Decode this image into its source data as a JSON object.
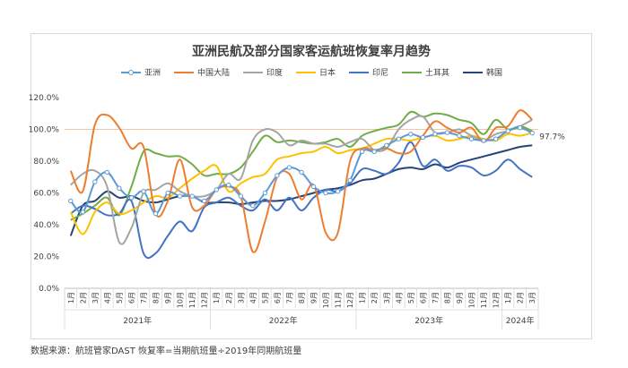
{
  "chart_data": {
    "type": "line",
    "title": "亚洲民航及部分国家客运航班恢复率月趋势",
    "ylim": [
      0,
      120
    ],
    "yticks": [
      "0.0%",
      "20.0%",
      "40.0%",
      "60.0%",
      "80.0%",
      "100.0%",
      "120.0%"
    ],
    "reference_line": 100,
    "annotation": "97.7%",
    "months": [
      "1月",
      "2月",
      "3月",
      "4月",
      "5月",
      "6月",
      "7月",
      "8月",
      "9月",
      "10月",
      "11月",
      "12月",
      "1月",
      "2月",
      "3月",
      "4月",
      "5月",
      "6月",
      "7月",
      "8月",
      "9月",
      "10月",
      "11月",
      "12月",
      "1月",
      "2月",
      "3月",
      "4月",
      "5月",
      "6月",
      "7月",
      "8月",
      "9月",
      "10月",
      "11月",
      "12月",
      "1月",
      "2月",
      "3月"
    ],
    "years": [
      {
        "label": "2021年",
        "start": 0,
        "end": 11
      },
      {
        "label": "2022年",
        "start": 12,
        "end": 23
      },
      {
        "label": "2023年",
        "start": 24,
        "end": 35
      },
      {
        "label": "2024年",
        "start": 36,
        "end": 38
      }
    ],
    "series": [
      {
        "name": "亚洲",
        "color": "#5b9bd5",
        "marker": true,
        "values": [
          55,
          48,
          67,
          73,
          63,
          57,
          61,
          47,
          60,
          58,
          58,
          55,
          62,
          65,
          58,
          52,
          60,
          71,
          76,
          73,
          64,
          60,
          61,
          68,
          86,
          86,
          90,
          94,
          97,
          95,
          97,
          98,
          96,
          94,
          93,
          94,
          99,
          101,
          97.7
        ]
      },
      {
        "name": "中国大陆",
        "color": "#ed7d31",
        "marker": false,
        "values": [
          74,
          61,
          103,
          109,
          101,
          88,
          89,
          47,
          55,
          81,
          51,
          52,
          62,
          64,
          58,
          23,
          42,
          70,
          72,
          56,
          65,
          35,
          35,
          80,
          88,
          87,
          88,
          85,
          86,
          96,
          105,
          101,
          98,
          101,
          92,
          101,
          102,
          112,
          106
        ]
      },
      {
        "name": "印度",
        "color": "#a5a5a5",
        "marker": false,
        "values": [
          65,
          72,
          74,
          64,
          29,
          38,
          60,
          62,
          66,
          61,
          58,
          58,
          62,
          72,
          69,
          93,
          100,
          98,
          90,
          93,
          91,
          91,
          89,
          92,
          94,
          87,
          88,
          100,
          106,
          108,
          98,
          98,
          100,
          96,
          93,
          97,
          99,
          102,
          106
        ]
      },
      {
        "name": "日本",
        "color": "#ffc000",
        "marker": false,
        "values": [
          48,
          34,
          48,
          54,
          47,
          49,
          54,
          58,
          57,
          63,
          69,
          74,
          77,
          61,
          66,
          70,
          72,
          81,
          83,
          85,
          86,
          89,
          85,
          87,
          88,
          91,
          94,
          94,
          93,
          95,
          96,
          93,
          94,
          96,
          94,
          93,
          97,
          96,
          98
        ]
      },
      {
        "name": "印尼",
        "color": "#4472c4",
        "marker": false,
        "values": [
          47,
          52,
          50,
          46,
          47,
          55,
          22,
          22,
          33,
          42,
          36,
          51,
          54,
          57,
          52,
          49,
          56,
          49,
          57,
          49,
          57,
          62,
          61,
          66,
          75,
          74,
          72,
          79,
          92,
          77,
          81,
          74,
          77,
          76,
          71,
          74,
          81,
          75,
          70
        ]
      },
      {
        "name": "土耳其",
        "color": "#70ad47",
        "marker": false,
        "values": [
          43,
          47,
          52,
          57,
          46,
          64,
          86,
          85,
          83,
          83,
          78,
          71,
          72,
          72,
          76,
          86,
          96,
          92,
          93,
          92,
          91,
          92,
          94,
          89,
          96,
          99,
          101,
          103,
          111,
          108,
          110,
          109,
          106,
          104,
          97,
          106,
          100,
          102,
          99
        ]
      },
      {
        "name": "韩国",
        "color": "#264478",
        "marker": false,
        "values": [
          33,
          52,
          55,
          61,
          57,
          58,
          55,
          54,
          56,
          58,
          58,
          54,
          54,
          54,
          53,
          54,
          55,
          55,
          56,
          58,
          60,
          62,
          63,
          65,
          68,
          69,
          72,
          75,
          76,
          75,
          78,
          76,
          79,
          81,
          83,
          85,
          87,
          89,
          90
        ]
      }
    ]
  },
  "footer": {
    "source": "数据来源：航班管家DAST 恢复率=当期航班量÷2019年同期航班量"
  }
}
